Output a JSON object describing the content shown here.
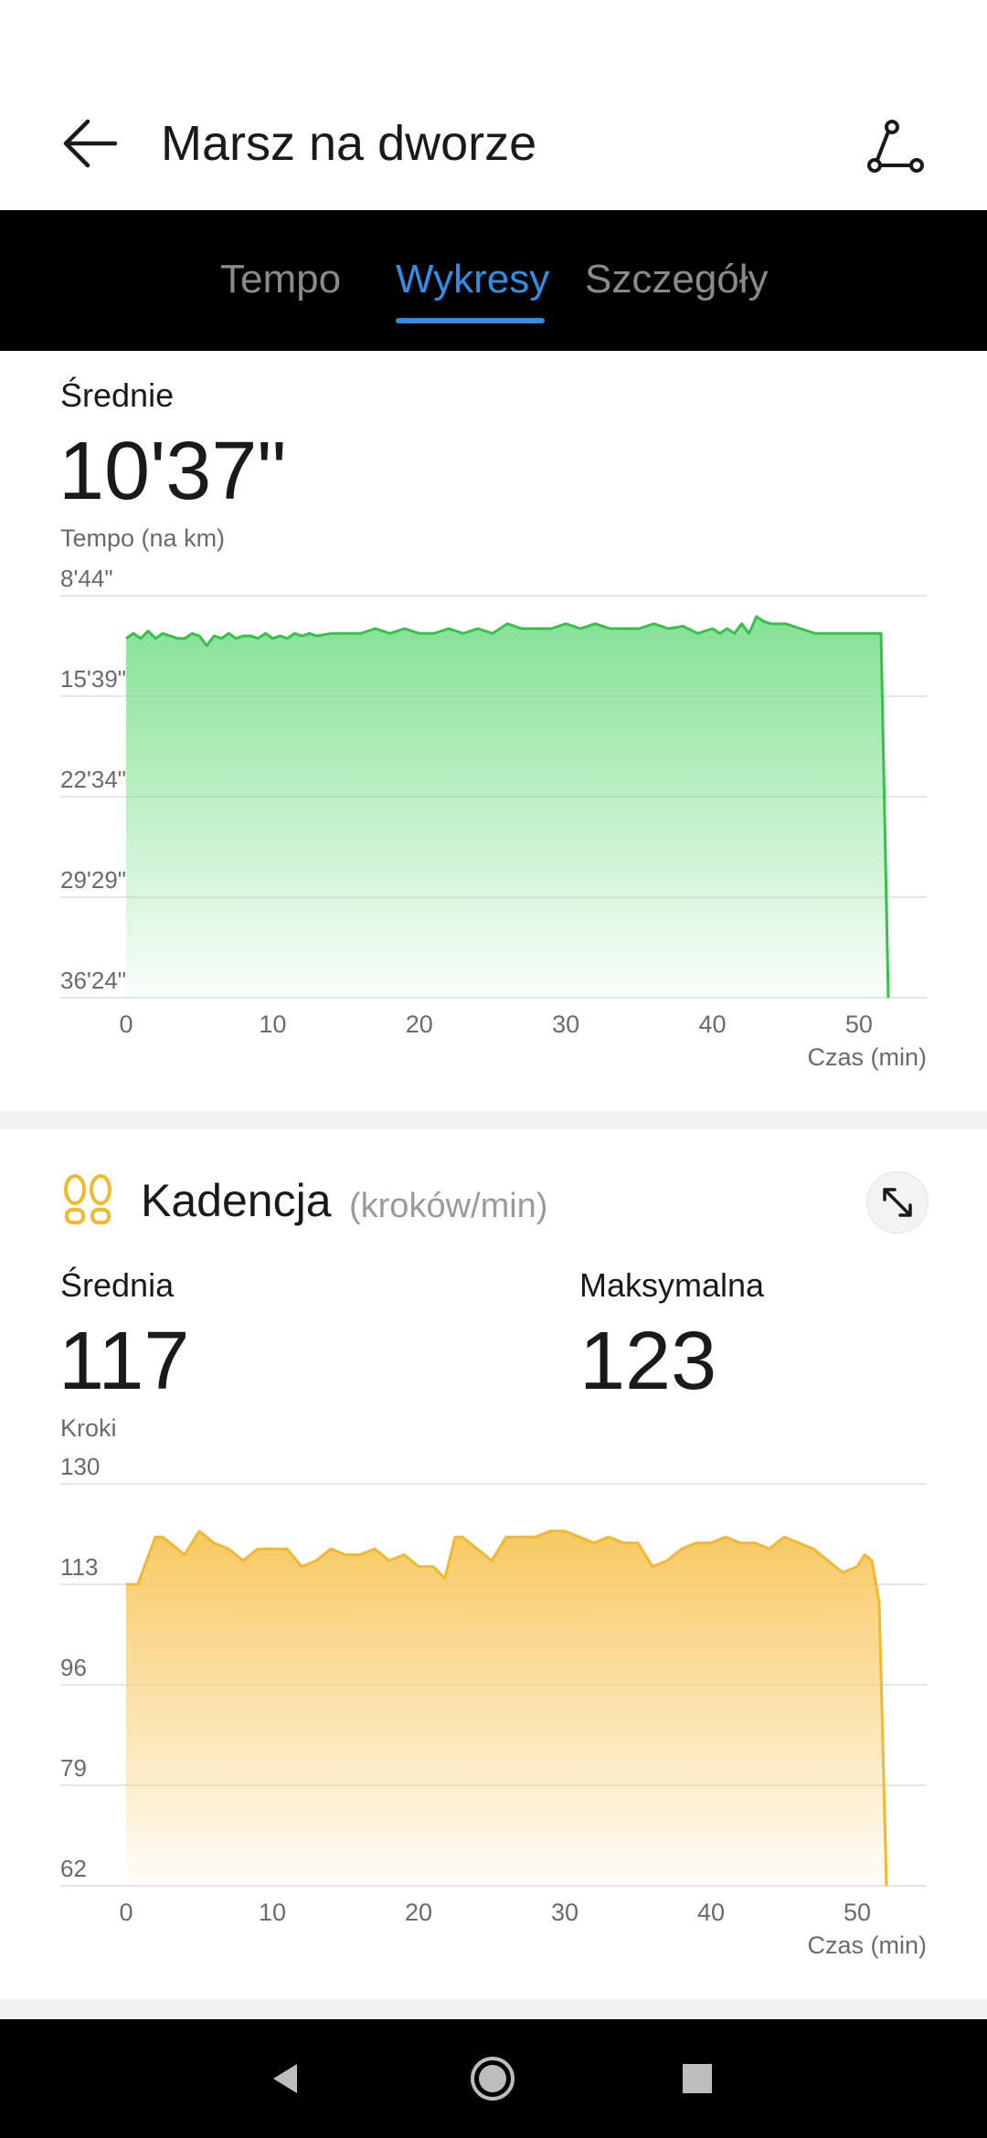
{
  "header": {
    "title": "Marsz na dworze"
  },
  "tabs": [
    {
      "label": "Tempo",
      "active": false
    },
    {
      "label": "Wykresy",
      "active": true
    },
    {
      "label": "Szczegóły",
      "active": false
    }
  ],
  "pace": {
    "avg_label": "Średnie",
    "avg_value": "10'37\"",
    "unit_label": "Tempo (na km)"
  },
  "cadence": {
    "title": "Kadencja",
    "unit": "(kroków/min)",
    "avg_label": "Średnia",
    "avg_value": "117",
    "max_label": "Maksymalna",
    "max_value": "123",
    "axis_unit": "Kroki"
  },
  "colors": {
    "accent": "#2f8fe6",
    "pace_line": "#35c24a",
    "pace_fill": "#7ee08f",
    "cadence_line": "#f2b92e",
    "cadence_fill": "#f7c65a"
  },
  "chart_data": [
    {
      "type": "area",
      "ylabel": "Tempo (na km)",
      "xlabel": "Czas (min)",
      "y_axis_inverted": true,
      "y_unit": "seconds per km",
      "y_tick_labels": [
        "8'44\"",
        "15'39\"",
        "22'34\"",
        "29'29\"",
        "36'24\""
      ],
      "y_tick_values": [
        524,
        939,
        1354,
        1769,
        2184
      ],
      "ylim": [
        524,
        2184
      ],
      "x_ticks": [
        0,
        10,
        20,
        30,
        40,
        50
      ],
      "xlim": [
        0,
        52
      ],
      "grid": true,
      "x": [
        0,
        0.5,
        1,
        1.5,
        2,
        2.5,
        3,
        3.5,
        4,
        4.5,
        5,
        5.5,
        6,
        6.5,
        7,
        7.5,
        8,
        8.5,
        9,
        9.5,
        10,
        10.5,
        11,
        11.5,
        12,
        12.5,
        13,
        14,
        15,
        16,
        17,
        18,
        19,
        20,
        20.5,
        21,
        22,
        23,
        24,
        25,
        26,
        27,
        28,
        29,
        30,
        31,
        32,
        33,
        34,
        35,
        36,
        37,
        38,
        39,
        40,
        40.5,
        41,
        41.5,
        42,
        42.5,
        43,
        43.5,
        44,
        45,
        46,
        47,
        48,
        49,
        50,
        51,
        51.5,
        52
      ],
      "values": [
        700,
        680,
        700,
        670,
        700,
        680,
        690,
        700,
        700,
        680,
        690,
        730,
        690,
        700,
        680,
        700,
        690,
        690,
        700,
        680,
        700,
        690,
        700,
        680,
        690,
        680,
        690,
        680,
        680,
        680,
        660,
        680,
        660,
        680,
        680,
        680,
        660,
        680,
        660,
        680,
        640,
        660,
        660,
        660,
        640,
        660,
        640,
        660,
        660,
        660,
        640,
        660,
        650,
        680,
        660,
        680,
        660,
        680,
        640,
        680,
        610,
        630,
        640,
        640,
        660,
        680,
        680,
        680,
        680,
        680,
        680,
        2184
      ]
    },
    {
      "type": "area",
      "ylabel": "Kroki",
      "xlabel": "Czas (min)",
      "y_ticks": [
        62,
        79,
        96,
        113,
        130
      ],
      "ylim": [
        62,
        130
      ],
      "x_ticks": [
        0,
        10,
        20,
        30,
        40,
        50
      ],
      "xlim": [
        0,
        52
      ],
      "grid": true,
      "x": [
        0,
        0.8,
        2,
        2.5,
        3,
        4,
        5,
        6,
        7,
        8,
        9,
        10,
        11,
        12,
        13,
        14,
        15,
        16,
        17,
        18,
        19,
        20,
        21,
        21.8,
        22.5,
        23,
        24,
        25,
        26,
        27,
        28,
        29,
        30,
        31,
        32,
        33,
        34,
        35,
        36,
        37,
        38,
        39,
        40,
        41,
        42,
        43,
        44,
        45,
        46,
        47,
        48,
        49,
        50,
        50.5,
        51,
        51.5,
        52
      ],
      "values": [
        113,
        113,
        121,
        121,
        120,
        118,
        122,
        120,
        119,
        117,
        119,
        119,
        119,
        116,
        117,
        119,
        118,
        118,
        119,
        117,
        118,
        116,
        116,
        114,
        121,
        121,
        119,
        117,
        121,
        121,
        121,
        122,
        122,
        121,
        120,
        121,
        120,
        120,
        116,
        117,
        119,
        120,
        120,
        121,
        120,
        120,
        119,
        121,
        120,
        119,
        117,
        115,
        116,
        118,
        117,
        110,
        62
      ]
    }
  ]
}
